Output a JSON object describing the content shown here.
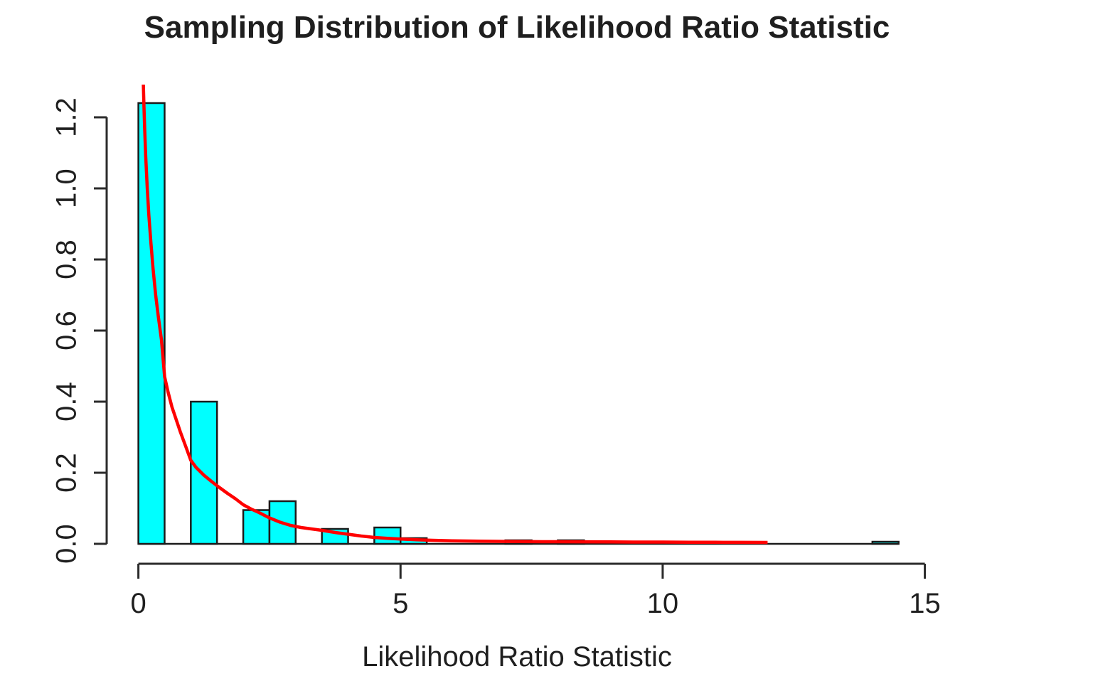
{
  "page": {
    "background": "#ffffff"
  },
  "chart_data": {
    "type": "bar",
    "subtype": "histogram-with-density-curve",
    "title": "Sampling Distribution of Likelihood Ratio Statistic",
    "xlabel": "Likelihood Ratio Statistic",
    "ylabel": "",
    "xlim": [
      0,
      15
    ],
    "ylim": [
      0,
      1.3
    ],
    "x_ticks": [
      "0",
      "5",
      "10",
      "15"
    ],
    "x_tick_values": [
      0,
      5,
      10,
      15
    ],
    "y_ticks": [
      "0.0",
      "0.2",
      "0.4",
      "0.6",
      "0.8",
      "1.0",
      "1.2"
    ],
    "y_tick_values": [
      0,
      0.2,
      0.4,
      0.6,
      0.8,
      1.0,
      1.2
    ],
    "grid": false,
    "legend": null,
    "bar_fill": "#00ffff",
    "bar_stroke": "#1b1b1b",
    "axis_color": "#2b2b2b",
    "curve_color": "#ff0000",
    "bins": {
      "start": 0,
      "bin_width": 0.5,
      "densities": [
        1.24,
        0,
        0.4,
        0,
        0.095,
        0.12,
        0,
        0.042,
        0,
        0.046,
        0.016,
        0,
        0,
        0,
        0.01,
        0,
        0.01,
        0,
        0,
        0,
        0,
        0,
        0,
        0,
        0,
        0,
        0,
        0,
        0.006
      ]
    },
    "curve": {
      "name": "density-curve",
      "ends_at_x": 12,
      "points": [
        [
          0.095,
          1.292
        ],
        [
          0.105,
          1.24
        ],
        [
          0.12,
          1.17
        ],
        [
          0.14,
          1.09
        ],
        [
          0.17,
          1.0
        ],
        [
          0.2,
          0.925
        ],
        [
          0.24,
          0.845
        ],
        [
          0.28,
          0.775
        ],
        [
          0.33,
          0.7
        ],
        [
          0.38,
          0.64
        ],
        [
          0.44,
          0.575
        ],
        [
          0.5,
          0.47
        ],
        [
          0.57,
          0.425
        ],
        [
          0.64,
          0.385
        ],
        [
          0.72,
          0.35
        ],
        [
          0.8,
          0.315
        ],
        [
          0.9,
          0.275
        ],
        [
          1.0,
          0.235
        ],
        [
          1.1,
          0.215
        ],
        [
          1.25,
          0.193
        ],
        [
          1.4,
          0.175
        ],
        [
          1.55,
          0.158
        ],
        [
          1.7,
          0.142
        ],
        [
          1.85,
          0.127
        ],
        [
          2.0,
          0.11
        ],
        [
          2.15,
          0.098
        ],
        [
          2.3,
          0.088
        ],
        [
          2.5,
          0.073
        ],
        [
          2.7,
          0.061
        ],
        [
          2.9,
          0.052
        ],
        [
          3.1,
          0.046
        ],
        [
          3.3,
          0.042
        ],
        [
          3.5,
          0.038
        ],
        [
          3.75,
          0.032
        ],
        [
          4.0,
          0.027
        ],
        [
          4.25,
          0.022
        ],
        [
          4.5,
          0.018
        ],
        [
          4.75,
          0.0155
        ],
        [
          5.0,
          0.0135
        ],
        [
          5.3,
          0.0115
        ],
        [
          5.6,
          0.01
        ],
        [
          6.0,
          0.0085
        ],
        [
          6.5,
          0.0075
        ],
        [
          7.0,
          0.0068
        ],
        [
          7.5,
          0.0063
        ],
        [
          8.0,
          0.006
        ],
        [
          8.5,
          0.0057
        ],
        [
          9.0,
          0.0054
        ],
        [
          9.5,
          0.0051
        ],
        [
          10.0,
          0.0049
        ],
        [
          10.5,
          0.0046
        ],
        [
          11.0,
          0.0044
        ],
        [
          11.5,
          0.0042
        ],
        [
          12.0,
          0.004
        ]
      ]
    }
  }
}
